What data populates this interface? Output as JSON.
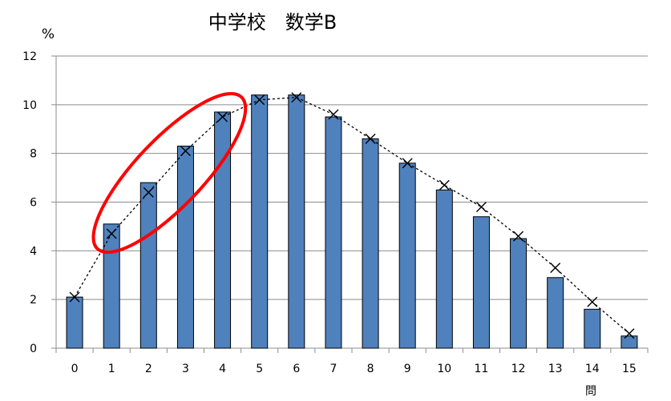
{
  "chart_data": {
    "type": "bar",
    "title": "中学校　数学B",
    "ylabel": "%",
    "xlabel": "問",
    "categories": [
      "0",
      "1",
      "2",
      "3",
      "4",
      "5",
      "6",
      "7",
      "8",
      "9",
      "10",
      "11",
      "12",
      "13",
      "14",
      "15"
    ],
    "ylim": [
      0,
      12
    ],
    "yticks": [
      0,
      2,
      4,
      6,
      8,
      10,
      12
    ],
    "grid": true,
    "series": [
      {
        "type": "bar",
        "color": "#4f81bd",
        "values": [
          2.1,
          5.1,
          6.8,
          8.3,
          9.7,
          10.4,
          10.4,
          9.5,
          8.6,
          7.6,
          6.5,
          5.4,
          4.5,
          2.9,
          1.6,
          0.5
        ]
      },
      {
        "type": "line",
        "style": "dashed",
        "marker": "x",
        "color": "#000000",
        "values": [
          2.1,
          4.7,
          6.4,
          8.1,
          9.5,
          10.2,
          10.3,
          9.6,
          8.6,
          7.6,
          6.7,
          5.8,
          4.6,
          3.3,
          1.9,
          0.6
        ]
      }
    ],
    "annotations": [
      {
        "type": "ellipse",
        "color": "#ff0000",
        "covers_categories": [
          "1",
          "4"
        ]
      }
    ]
  }
}
